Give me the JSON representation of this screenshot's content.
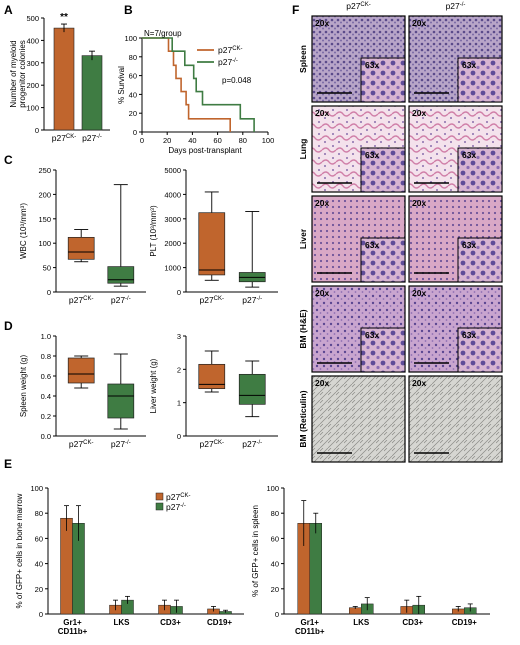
{
  "colors": {
    "ko_brown": "#c0652d",
    "null_green": "#3f7c43",
    "tile_border": "#000000"
  },
  "panel_letters": [
    "A",
    "B",
    "C",
    "D",
    "E",
    "F"
  ],
  "genotypes": {
    "ck": "p27CK-",
    "null": "p27-/-",
    "ck_base": "p27",
    "ck_sup": "CK-",
    "null_base": "p27",
    "null_sup": "-/-"
  },
  "chart_data": [
    {
      "id": "A",
      "type": "bar",
      "categories": [
        "p27CK-",
        "p27-/-"
      ],
      "values": [
        455,
        332
      ],
      "errors": [
        18,
        20
      ],
      "ylabel": "Number of myeloid progenitor colonies",
      "ylim": [
        0,
        500
      ],
      "yticks": [
        0,
        100,
        200,
        300,
        400,
        500
      ],
      "annotation": "**"
    },
    {
      "id": "B",
      "type": "line",
      "xlabel": "Days post-transplant",
      "ylabel": "% Survival",
      "xlim": [
        0,
        100
      ],
      "ylim": [
        0,
        100
      ],
      "xticks": [
        0,
        20,
        40,
        60,
        80,
        100
      ],
      "yticks": [
        0,
        20,
        40,
        60,
        80,
        100
      ],
      "note": "N=7/group",
      "pvalue": "p=0.048",
      "series": [
        {
          "name": "p27CK-",
          "points": [
            [
              0,
              100
            ],
            [
              21,
              100
            ],
            [
              21,
              86
            ],
            [
              25,
              86
            ],
            [
              25,
              71
            ],
            [
              27,
              71
            ],
            [
              27,
              57
            ],
            [
              31,
              57
            ],
            [
              31,
              43
            ],
            [
              35,
              43
            ],
            [
              35,
              29
            ],
            [
              37,
              29
            ],
            [
              37,
              14
            ],
            [
              70,
              14
            ],
            [
              70,
              0
            ]
          ]
        },
        {
          "name": "p27-/-",
          "points": [
            [
              0,
              100
            ],
            [
              24,
              100
            ],
            [
              24,
              86
            ],
            [
              34,
              86
            ],
            [
              34,
              71
            ],
            [
              41,
              71
            ],
            [
              41,
              57
            ],
            [
              43,
              57
            ],
            [
              43,
              43
            ],
            [
              48,
              43
            ],
            [
              48,
              29
            ],
            [
              78,
              29
            ],
            [
              78,
              14
            ],
            [
              89,
              14
            ],
            [
              89,
              0
            ]
          ]
        }
      ]
    },
    {
      "id": "C1",
      "type": "box",
      "categories": [
        "p27CK-",
        "p27-/-"
      ],
      "ylabel": "WBC (10³/mm³)",
      "ylim": [
        0,
        250
      ],
      "yticks": [
        0,
        50,
        100,
        150,
        200,
        250
      ],
      "boxes": [
        {
          "min": 62,
          "q1": 67,
          "median": 82,
          "q3": 112,
          "max": 128
        },
        {
          "min": 12,
          "q1": 18,
          "median": 25,
          "q3": 52,
          "max": 220
        }
      ]
    },
    {
      "id": "C2",
      "type": "box",
      "categories": [
        "p27CK-",
        "p27-/-"
      ],
      "ylabel": "PLT (10³/mm³)",
      "ylim": [
        0,
        5000
      ],
      "yticks": [
        0,
        1000,
        2000,
        3000,
        4000,
        5000
      ],
      "boxes": [
        {
          "min": 480,
          "q1": 700,
          "median": 900,
          "q3": 3250,
          "max": 4100
        },
        {
          "min": 200,
          "q1": 420,
          "median": 600,
          "q3": 800,
          "max": 3300
        }
      ]
    },
    {
      "id": "D1",
      "type": "box",
      "categories": [
        "p27CK-",
        "p27-/-"
      ],
      "ylabel": "Spleen weight (g)",
      "ylim": [
        0,
        1.0
      ],
      "yticks": [
        0.0,
        0.2,
        0.4,
        0.6,
        0.8,
        1.0
      ],
      "boxes": [
        {
          "min": 0.48,
          "q1": 0.53,
          "median": 0.62,
          "q3": 0.78,
          "max": 0.8
        },
        {
          "min": 0.07,
          "q1": 0.18,
          "median": 0.4,
          "q3": 0.52,
          "max": 0.82
        }
      ]
    },
    {
      "id": "D2",
      "type": "box",
      "categories": [
        "p27CK-",
        "p27-/-"
      ],
      "ylabel": "Liver weight (g)",
      "ylim": [
        0,
        3
      ],
      "yticks": [
        0,
        1,
        2,
        3
      ],
      "boxes": [
        {
          "min": 1.32,
          "q1": 1.42,
          "median": 1.55,
          "q3": 2.15,
          "max": 2.55
        },
        {
          "min": 0.58,
          "q1": 0.95,
          "median": 1.22,
          "q3": 1.85,
          "max": 2.25
        }
      ]
    },
    {
      "id": "E1",
      "type": "bar",
      "categories": [
        "Gr1+ CD11b+",
        "LKS",
        "CD3+",
        "CD19+"
      ],
      "ylabel": "% of GFP+ cells in bone marrow",
      "ylim": [
        0,
        100
      ],
      "yticks": [
        0,
        20,
        40,
        60,
        80,
        100
      ],
      "series": [
        {
          "name": "p27CK-",
          "values": [
            76,
            7,
            7,
            4
          ],
          "errors": [
            10,
            4,
            4,
            2
          ]
        },
        {
          "name": "p27-/-",
          "values": [
            72,
            11,
            6,
            2
          ],
          "errors": [
            14,
            3,
            5,
            1
          ]
        }
      ]
    },
    {
      "id": "E2",
      "type": "bar",
      "categories": [
        "Gr1+ CD11b+",
        "LKS",
        "CD3+",
        "CD19+"
      ],
      "ylabel": "% of GFP+ cells in spleen",
      "ylim": [
        0,
        100
      ],
      "yticks": [
        0,
        20,
        40,
        60,
        80,
        100
      ],
      "series": [
        {
          "name": "p27CK-",
          "values": [
            72,
            5,
            6,
            4
          ],
          "errors": [
            18,
            1,
            5,
            2
          ]
        },
        {
          "name": "p27-/-",
          "values": [
            72,
            8,
            7,
            5
          ],
          "errors": [
            8,
            5,
            7,
            3
          ]
        }
      ]
    }
  ],
  "histology": {
    "rows": [
      "Spleen",
      "Lung",
      "Liver",
      "BM (H&E)",
      "BM (Reticulin)"
    ],
    "columns": [
      "p27CK-",
      "p27-/-"
    ],
    "magnification": "20x",
    "inset_magnification": "63x",
    "inset_rows": [
      0,
      1,
      2,
      3
    ]
  }
}
